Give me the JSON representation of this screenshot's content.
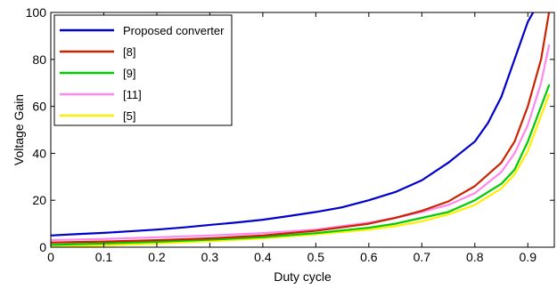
{
  "chart_data": {
    "type": "line",
    "title": "",
    "xlabel": "Duty cycle",
    "ylabel": "Voltage Gain",
    "xlim": [
      0,
      0.95
    ],
    "ylim": [
      0,
      100
    ],
    "xticks": [
      0,
      0.1,
      0.2,
      0.3,
      0.4,
      0.5,
      0.6,
      0.7,
      0.8,
      0.9
    ],
    "xtick_labels": [
      "0",
      "0.1",
      "0.2",
      "0.3",
      "0.4",
      "0.5",
      "0.6",
      "0.7",
      "0.8",
      "0.9"
    ],
    "yticks": [
      0,
      20,
      40,
      60,
      80,
      100
    ],
    "ytick_labels": [
      "0",
      "20",
      "40",
      "60",
      "80",
      "100"
    ],
    "grid": false,
    "legend_position": "top-left",
    "series": [
      {
        "name": "Proposed converter",
        "color": "#0000cc",
        "x": [
          0,
          0.05,
          0.1,
          0.15,
          0.2,
          0.25,
          0.3,
          0.35,
          0.4,
          0.45,
          0.5,
          0.55,
          0.6,
          0.65,
          0.7,
          0.75,
          0.8,
          0.825,
          0.85,
          0.875,
          0.9,
          0.91
        ],
        "y": [
          5,
          5.6,
          6.1,
          6.8,
          7.5,
          8.4,
          9.5,
          10.5,
          11.7,
          13.3,
          15,
          17,
          20,
          23.5,
          28.5,
          36,
          45,
          53,
          64,
          80,
          96,
          100
        ]
      },
      {
        "name": "[8]",
        "color": "#cc2200",
        "x": [
          0,
          0.1,
          0.2,
          0.3,
          0.4,
          0.5,
          0.6,
          0.65,
          0.7,
          0.75,
          0.8,
          0.85,
          0.875,
          0.9,
          0.925,
          0.94
        ],
        "y": [
          2,
          2.4,
          3,
          3.8,
          5,
          7,
          10,
          12.5,
          15.5,
          19.5,
          26,
          36,
          45,
          60,
          80,
          100
        ]
      },
      {
        "name": "[9]",
        "color": "#00cc00",
        "x": [
          0,
          0.1,
          0.2,
          0.3,
          0.4,
          0.5,
          0.6,
          0.65,
          0.7,
          0.75,
          0.8,
          0.85,
          0.875,
          0.9,
          0.925,
          0.94
        ],
        "y": [
          1,
          1.6,
          2.3,
          3.2,
          4.3,
          6,
          8.3,
          10,
          12.5,
          15,
          20,
          27,
          33,
          45,
          60,
          69
        ]
      },
      {
        "name": "[11]",
        "color": "#ff88ee",
        "x": [
          0,
          0.1,
          0.2,
          0.3,
          0.4,
          0.5,
          0.6,
          0.65,
          0.7,
          0.75,
          0.8,
          0.85,
          0.875,
          0.9,
          0.925,
          0.94
        ],
        "y": [
          3,
          3.5,
          4.2,
          5,
          6,
          7.5,
          10.5,
          12.5,
          15,
          18,
          23,
          32,
          40,
          52,
          70,
          86
        ]
      },
      {
        "name": "[5]",
        "color": "#ffee00",
        "x": [
          0,
          0.1,
          0.2,
          0.3,
          0.4,
          0.5,
          0.6,
          0.65,
          0.7,
          0.75,
          0.8,
          0.85,
          0.875,
          0.9,
          0.925,
          0.94
        ],
        "y": [
          0,
          0.8,
          1.6,
          2.6,
          3.8,
          5.5,
          7.5,
          9,
          11,
          14,
          18,
          25,
          31,
          41,
          56,
          65
        ]
      }
    ]
  }
}
